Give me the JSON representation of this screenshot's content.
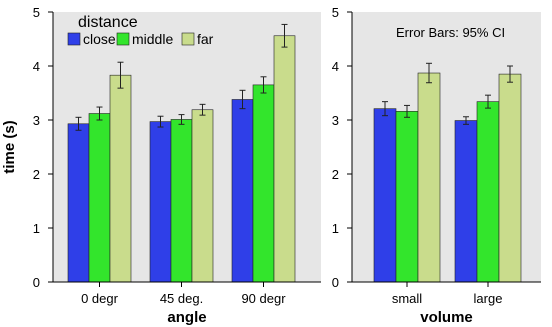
{
  "colors": {
    "panel_bg": "#e6e6e6",
    "close": "#2f3fe8",
    "middle": "#33e52c",
    "far": "#c9dc8c",
    "bar_edge": "#222222",
    "error_bar": "#222222"
  },
  "legend": {
    "title": "distance",
    "labels": [
      "close",
      "middle",
      "far"
    ]
  },
  "chart_data": [
    {
      "type": "bar",
      "title": "",
      "xlabel": "angle",
      "ylabel": "time (s)",
      "ylim": [
        0,
        5
      ],
      "yticks": [
        0,
        1,
        2,
        3,
        4,
        5
      ],
      "categories": [
        "0 degr",
        "45 deg.",
        "90 degr"
      ],
      "series": [
        {
          "name": "close",
          "values": [
            2.93,
            2.97,
            3.38
          ],
          "error": [
            0.12,
            0.1,
            0.17
          ]
        },
        {
          "name": "middle",
          "values": [
            3.12,
            3.01,
            3.65
          ],
          "error": [
            0.12,
            0.09,
            0.15
          ]
        },
        {
          "name": "far",
          "values": [
            3.83,
            3.19,
            4.56
          ],
          "error": [
            0.24,
            0.1,
            0.21
          ]
        }
      ],
      "legend_position": "top-left",
      "grid": false
    },
    {
      "type": "bar",
      "title": "",
      "annotation": "Error Bars: 95% CI",
      "xlabel": "volume",
      "ylabel": "",
      "ylim": [
        0,
        5
      ],
      "yticks": [
        0,
        1,
        2,
        3,
        4,
        5
      ],
      "categories": [
        "small",
        "large"
      ],
      "series": [
        {
          "name": "close",
          "values": [
            3.21,
            2.99
          ],
          "error": [
            0.13,
            0.07
          ]
        },
        {
          "name": "middle",
          "values": [
            3.16,
            3.34
          ],
          "error": [
            0.11,
            0.12
          ]
        },
        {
          "name": "far",
          "values": [
            3.87,
            3.85
          ],
          "error": [
            0.18,
            0.15
          ]
        }
      ],
      "grid": false
    }
  ]
}
